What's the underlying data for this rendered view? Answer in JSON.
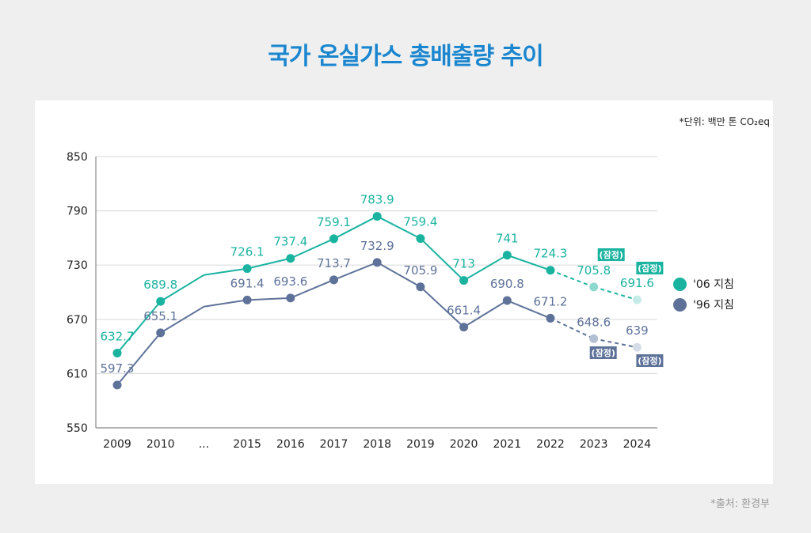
{
  "title": "국가 온실가스 총배출량 추이",
  "unit_note": "*단위: 백만 톤 CO₂eq",
  "source_note": "*출처: 환경부",
  "provisional_label": "(잠정)",
  "colors": {
    "series_06": "#1ab3a0",
    "series_96": "#5e7299",
    "series_06_provisional": "#8fd8cf",
    "series_96_provisional": "#b3bfd3",
    "title": "#1a86cf",
    "grid": "#dddddd"
  },
  "legend": [
    {
      "label": "'06 지침",
      "color": "#1ab3a0"
    },
    {
      "label": "'96 지침",
      "color": "#5e7299"
    }
  ],
  "chart_data": {
    "type": "line",
    "title": "국가 온실가스 총배출량 추이",
    "xlabel": "",
    "ylabel": "백만 톤 CO₂eq",
    "ylim": [
      550,
      850
    ],
    "yticks": [
      550,
      610,
      670,
      730,
      790,
      850
    ],
    "grid": true,
    "legend_position": "right",
    "categories": [
      "2009",
      "2010",
      "...",
      "2015",
      "2016",
      "2017",
      "2018",
      "2019",
      "2020",
      "2021",
      "2022",
      "2023",
      "2024"
    ],
    "series": [
      {
        "name": "'06 지침",
        "values": [
          632.7,
          689.8,
          719,
          726.1,
          737.4,
          759.1,
          783.9,
          759.4,
          713,
          741,
          724.3,
          705.8,
          691.6
        ],
        "labels": [
          "632.7",
          "689.8",
          "",
          "726.1",
          "737.4",
          "759.1",
          "783.9",
          "759.4",
          "713",
          "741",
          "724.3",
          "705.8",
          "691.6"
        ],
        "markers": [
          true,
          true,
          false,
          true,
          true,
          true,
          true,
          true,
          true,
          true,
          true,
          true,
          true
        ],
        "provisional": [
          false,
          false,
          false,
          false,
          false,
          false,
          false,
          false,
          false,
          false,
          false,
          true,
          true
        ]
      },
      {
        "name": "'96 지침",
        "values": [
          597.3,
          655.1,
          684,
          691.4,
          693.6,
          713.7,
          732.9,
          705.9,
          661.4,
          690.8,
          671.2,
          648.6,
          639
        ],
        "labels": [
          "597.3",
          "655.1",
          "",
          "691.4",
          "693.6",
          "713.7",
          "732.9",
          "705.9",
          "661.4",
          "690.8",
          "671.2",
          "648.6",
          "639"
        ],
        "markers": [
          true,
          true,
          false,
          true,
          true,
          true,
          true,
          true,
          true,
          true,
          true,
          true,
          true
        ],
        "provisional": [
          false,
          false,
          false,
          false,
          false,
          false,
          false,
          false,
          false,
          false,
          false,
          true,
          true
        ]
      }
    ]
  }
}
